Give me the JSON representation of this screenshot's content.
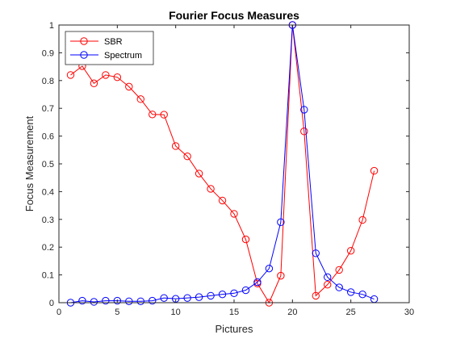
{
  "chart_data": {
    "type": "line",
    "title": "Fourier Focus Measures",
    "xlabel": "Pictures",
    "ylabel": "Focus Measurement",
    "xlim": [
      0,
      30
    ],
    "ylim": [
      0,
      1
    ],
    "xticks": [
      0,
      5,
      10,
      15,
      20,
      25,
      30
    ],
    "yticks": [
      0,
      0.1,
      0.2,
      0.3,
      0.4,
      0.5,
      0.6,
      0.7,
      0.8,
      0.9,
      1
    ],
    "grid": false,
    "legend_position": "top-left",
    "marker": "circle",
    "x": [
      1,
      2,
      3,
      4,
      5,
      6,
      7,
      8,
      9,
      10,
      11,
      12,
      13,
      14,
      15,
      16,
      17,
      18,
      19,
      20,
      21,
      22,
      23,
      24,
      25,
      26,
      27
    ],
    "series": [
      {
        "name": "SBR",
        "color": "#ff0000",
        "values": [
          0.82,
          0.852,
          0.79,
          0.82,
          0.812,
          0.778,
          0.733,
          0.678,
          0.677,
          0.564,
          0.527,
          0.465,
          0.41,
          0.368,
          0.32,
          0.228,
          0.069,
          0.0,
          0.097,
          1.0,
          0.617,
          0.025,
          0.065,
          0.118,
          0.187,
          0.298,
          0.475
        ]
      },
      {
        "name": "Spectrum",
        "color": "#0000ff",
        "values": [
          0.0,
          0.007,
          0.003,
          0.007,
          0.007,
          0.005,
          0.005,
          0.007,
          0.017,
          0.014,
          0.017,
          0.02,
          0.025,
          0.03,
          0.034,
          0.045,
          0.074,
          0.123,
          0.29,
          1.0,
          0.695,
          0.178,
          0.092,
          0.055,
          0.038,
          0.03,
          0.013
        ]
      }
    ]
  }
}
